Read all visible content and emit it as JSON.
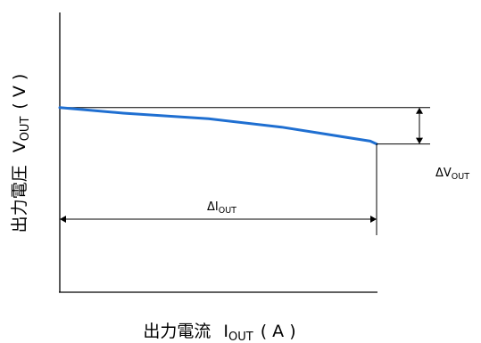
{
  "chart_data": {
    "type": "line",
    "xlabel": {
      "main": "出力電流",
      "symbol": "I",
      "subscript": "OUT",
      "unit": "( A )"
    },
    "ylabel": {
      "main": "出力電圧",
      "symbol": "V",
      "subscript": "OUT",
      "unit": "( V )"
    },
    "annotations": {
      "delta_v": {
        "prefix": "ΔV",
        "subscript": "OUT"
      },
      "delta_i": {
        "prefix": "ΔI",
        "subscript": "OUT"
      }
    },
    "xlim": [
      0,
      1
    ],
    "ylim": [
      0,
      1
    ],
    "reference_level": 0.66,
    "series": [
      {
        "color": "#1f6fd1",
        "x": [
          0.0,
          0.2,
          0.47,
          0.7,
          0.98,
          1.0
        ],
        "y": [
          0.66,
          0.64,
          0.62,
          0.59,
          0.54,
          0.53
        ]
      }
    ],
    "grid": false
  }
}
